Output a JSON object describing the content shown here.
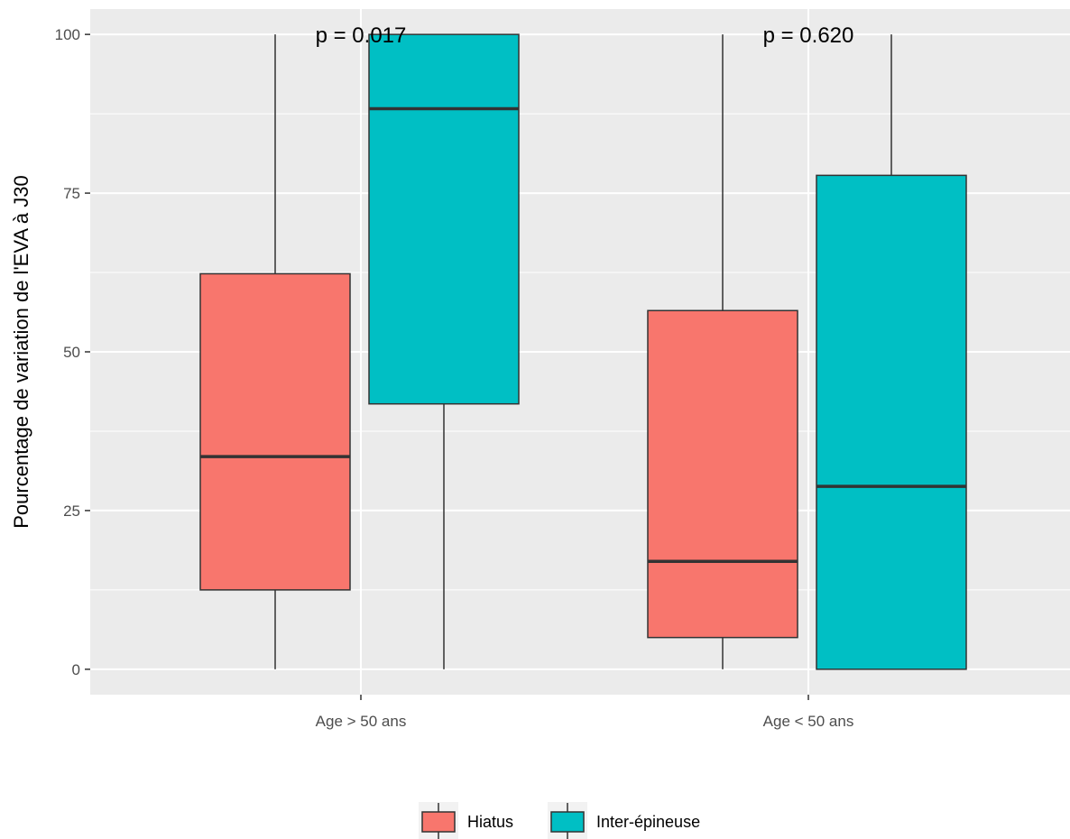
{
  "chart_data": {
    "type": "boxplot",
    "ylabel": "Pourcentage de variation de l'EVA à J30",
    "xlabel": "",
    "ylim": [
      -4,
      104
    ],
    "yticks": [
      0,
      25,
      50,
      75,
      100
    ],
    "grid": true,
    "legend_position": "bottom",
    "categories": [
      "Age > 50 ans",
      "Age < 50 ans"
    ],
    "series": [
      {
        "name": "Hiatus",
        "color": "#F8766D",
        "boxes": [
          {
            "category": "Age > 50 ans",
            "min": 0,
            "q1": 12.5,
            "median": 33.5,
            "q3": 62.3,
            "max": 100
          },
          {
            "category": "Age < 50 ans",
            "min": 0,
            "q1": 5.0,
            "median": 17.0,
            "q3": 56.5,
            "max": 100
          }
        ]
      },
      {
        "name": "Inter-épineuse",
        "color": "#00BFC4",
        "boxes": [
          {
            "category": "Age > 50 ans",
            "min": 0,
            "q1": 41.8,
            "median": 88.3,
            "q3": 100,
            "max": 100
          },
          {
            "category": "Age < 50 ans",
            "min": 0,
            "q1": 0,
            "median": 28.8,
            "q3": 77.8,
            "max": 100
          }
        ]
      }
    ],
    "annotations": [
      {
        "category": "Age > 50 ans",
        "text": "p = 0.017"
      },
      {
        "category": "Age < 50 ans",
        "text": "p = 0.620"
      }
    ]
  }
}
